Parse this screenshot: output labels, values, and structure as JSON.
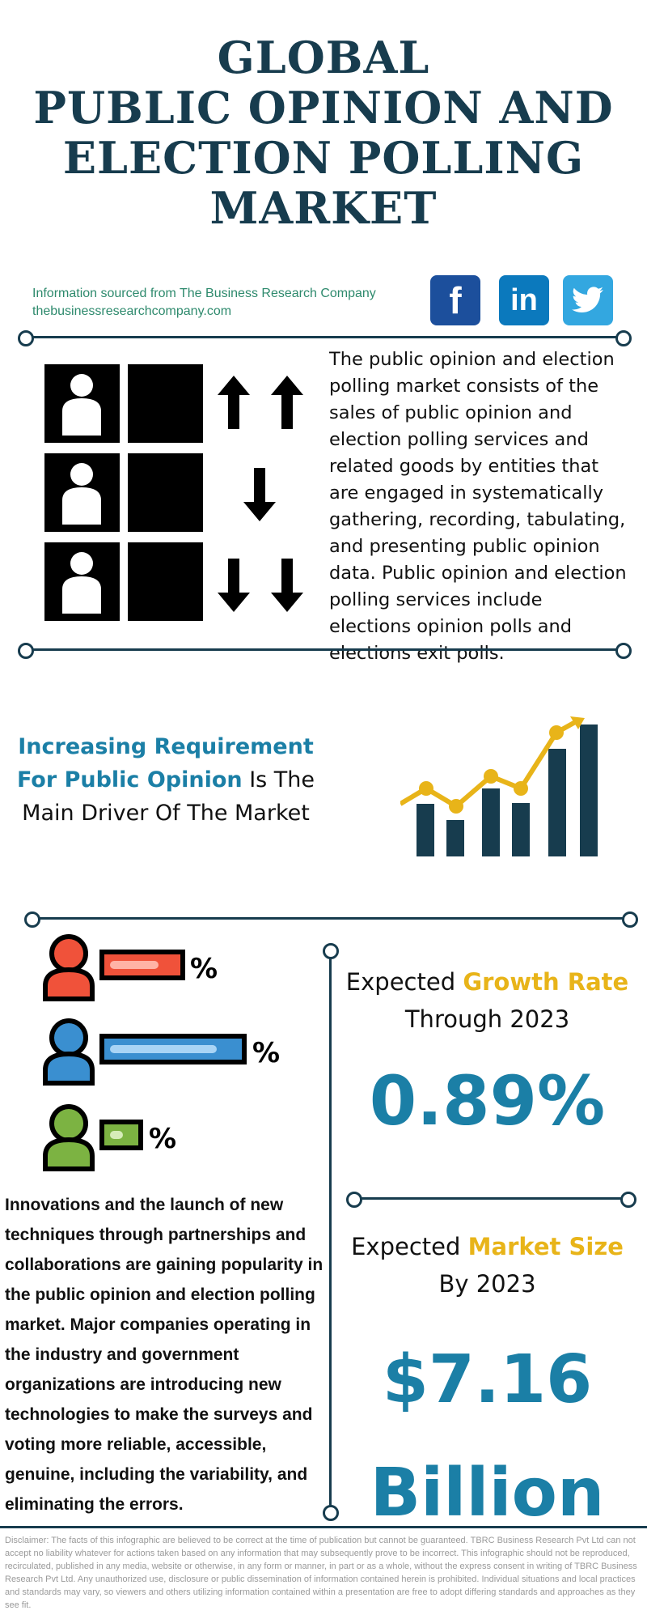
{
  "title": {
    "line1": "GLOBAL",
    "line2": "PUBLIC OPINION AND",
    "line3": "ELECTION POLLING",
    "line4": "MARKET"
  },
  "source": {
    "line1": "Information sourced from The Business Research Company",
    "line2": "thebusinessresearchcompany.com"
  },
  "social": {
    "facebook": {
      "glyph": "f",
      "color": "#1c4f9c",
      "icon": "facebook-icon"
    },
    "linkedin": {
      "glyph": "in",
      "color": "#0b79bd",
      "icon": "linkedin-icon"
    },
    "twitter": {
      "glyph": "🐦",
      "color": "#33a7e0",
      "icon": "twitter-icon"
    }
  },
  "description": "The public opinion and election polling market consists of the sales of public opinion and election polling services and related goods by entities that are engaged in systematically gathering, recording, tabulating, and presenting public opinion data. Public opinion and election polling services include elections opinion polls and elections exit polls.",
  "driver": {
    "highlight1": "Increasing Requirement",
    "highlight2": "For Public Opinion",
    "rest2": " Is The",
    "line3": "Main Driver Of The Market"
  },
  "growth": {
    "label_prefix": "Expected ",
    "label_highlight": "Growth Rate",
    "label_line2": "Through 2023",
    "value": "0.89%"
  },
  "market_size": {
    "label_prefix": "Expected ",
    "label_highlight": "Market Size",
    "label_line2": "By 2023",
    "value_line1": "$7.16",
    "value_line2": "Billion"
  },
  "innovation_text": "Innovations and the launch of new techniques through partnerships and collaborations are gaining popularity in the public opinion and election polling market. Major companies operating in the industry and government organizations are introducing new technologies to make the surveys and voting more reliable, accessible, genuine, including the variability, and eliminating the errors.",
  "disclaimer": "Disclaimer: The facts of this infographic are believed to be correct at the time of publication but cannot be guaranteed. TBRC Business Research Pvt Ltd can not accept no liability whatever for actions taken based on any information that may subsequently prove to be incorrect. This infographic should not be reproduced, recirculated, published in any media, website or otherwise, in any form or manner, in part or as a whole, without the express consent in writing of TBRC Business Research Pvt Ltd. Any unauthorized use, disclosure or public dissemination of information contained herein is prohibited. Individual situations and local practices and standards may vary, so viewers and others utilizing information contained within a presentation are free to adopt differing standards and approaches as they see fit.",
  "colors": {
    "navy": "#173c4e",
    "blue": "#1b7fa6",
    "gold": "#e8b419",
    "green_text": "#2e8a6d",
    "person_red": "#f0523a",
    "person_blue": "#3a8fd0",
    "person_green": "#7cb342"
  }
}
